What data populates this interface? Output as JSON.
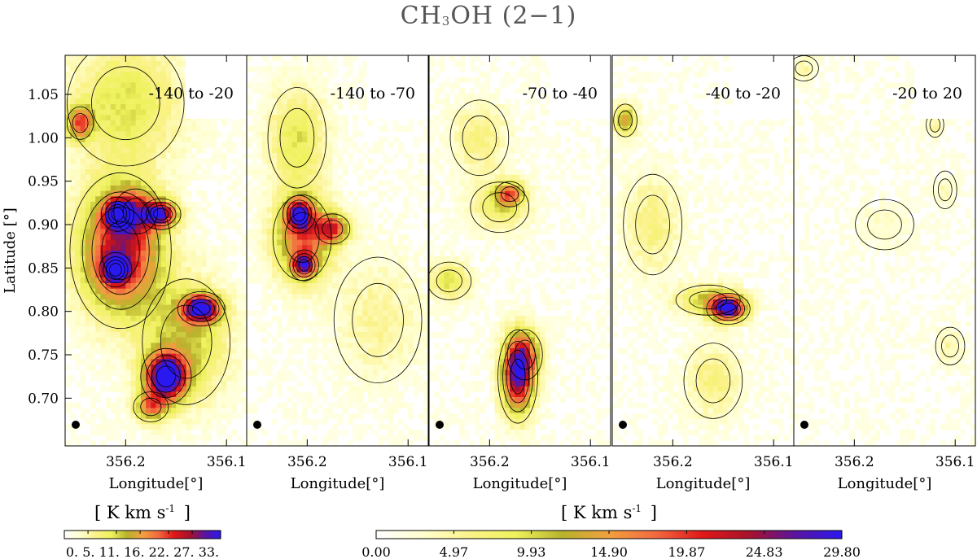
{
  "title": {
    "main": "CH",
    "sub": "3",
    "rest": "OH (2−1)"
  },
  "colors": {
    "colormap": [
      "#ffffff",
      "#ffffd0",
      "#fbf28a",
      "#eef25c",
      "#b8b22c",
      "#f2a040",
      "#f26a40",
      "#e01818",
      "#a8122a",
      "#5a14a0",
      "#2a18f0"
    ],
    "contour": "#000000"
  },
  "chart_data": {
    "type": "heatmap",
    "xlabel": "Longitude[°]",
    "ylabel": "Latitude [°]",
    "xlim": [
      356.26,
      356.08
    ],
    "ylim": [
      0.645,
      1.095
    ],
    "xticks": [
      356.2,
      356.1
    ],
    "xtick_labels": [
      "356.2",
      "356.1"
    ],
    "yticks": [
      0.7,
      0.75,
      0.8,
      0.85,
      0.9,
      0.95,
      1.0,
      1.05
    ],
    "ytick_labels": [
      "0.70",
      "0.75",
      "0.80",
      "0.85",
      "0.90",
      "0.95",
      "1.00",
      "1.05"
    ],
    "beam": "filled-circle-bottom-left",
    "panels": [
      {
        "label": "-140 to -20",
        "blobs": [
          {
            "lon": 356.205,
            "lat": 0.87,
            "val": 16,
            "sx": 0.028,
            "sy": 0.05
          },
          {
            "lon": 356.208,
            "lat": 0.912,
            "val": 14,
            "sx": 0.009,
            "sy": 0.011
          },
          {
            "lon": 356.21,
            "lat": 0.848,
            "val": 14,
            "sx": 0.009,
            "sy": 0.011
          },
          {
            "lon": 356.19,
            "lat": 0.915,
            "val": 8,
            "sx": 0.015,
            "sy": 0.018
          },
          {
            "lon": 356.165,
            "lat": 0.912,
            "val": 16,
            "sx": 0.011,
            "sy": 0.01
          },
          {
            "lon": 356.125,
            "lat": 0.803,
            "val": 20,
            "sx": 0.013,
            "sy": 0.011
          },
          {
            "lon": 356.16,
            "lat": 0.725,
            "val": 22,
            "sx": 0.014,
            "sy": 0.018
          },
          {
            "lon": 356.175,
            "lat": 0.69,
            "val": 10,
            "sx": 0.012,
            "sy": 0.012
          },
          {
            "lon": 356.245,
            "lat": 1.017,
            "val": 11,
            "sx": 0.009,
            "sy": 0.013
          },
          {
            "lon": 356.14,
            "lat": 0.765,
            "val": 7,
            "sx": 0.03,
            "sy": 0.05
          },
          {
            "lon": 356.2,
            "lat": 1.04,
            "val": 6,
            "sx": 0.04,
            "sy": 0.05
          }
        ]
      },
      {
        "label": "-140 to -70",
        "blobs": [
          {
            "lon": 356.205,
            "lat": 0.885,
            "val": 12,
            "sx": 0.02,
            "sy": 0.034
          },
          {
            "lon": 356.208,
            "lat": 0.912,
            "val": 14,
            "sx": 0.009,
            "sy": 0.012
          },
          {
            "lon": 356.203,
            "lat": 0.853,
            "val": 13,
            "sx": 0.008,
            "sy": 0.01
          },
          {
            "lon": 356.175,
            "lat": 0.895,
            "val": 12,
            "sx": 0.012,
            "sy": 0.012
          },
          {
            "lon": 356.21,
            "lat": 1.0,
            "val": 6,
            "sx": 0.02,
            "sy": 0.04
          },
          {
            "lon": 356.13,
            "lat": 0.79,
            "val": 3,
            "sx": 0.03,
            "sy": 0.05
          }
        ]
      },
      {
        "label": "-70 to -40",
        "blobs": [
          {
            "lon": 356.172,
            "lat": 0.725,
            "val": 18,
            "sx": 0.011,
            "sy": 0.03
          },
          {
            "lon": 356.165,
            "lat": 0.75,
            "val": 8,
            "sx": 0.012,
            "sy": 0.02
          },
          {
            "lon": 356.18,
            "lat": 0.935,
            "val": 10,
            "sx": 0.01,
            "sy": 0.01
          },
          {
            "lon": 356.19,
            "lat": 0.92,
            "val": 5,
            "sx": 0.02,
            "sy": 0.02
          },
          {
            "lon": 356.24,
            "lat": 0.835,
            "val": 6,
            "sx": 0.015,
            "sy": 0.015
          },
          {
            "lon": 356.21,
            "lat": 1.0,
            "val": 4,
            "sx": 0.02,
            "sy": 0.03
          }
        ]
      },
      {
        "label": "-40 to -20",
        "blobs": [
          {
            "lon": 356.145,
            "lat": 0.803,
            "val": 20,
            "sx": 0.012,
            "sy": 0.01
          },
          {
            "lon": 356.165,
            "lat": 0.813,
            "val": 7,
            "sx": 0.022,
            "sy": 0.012
          },
          {
            "lon": 356.247,
            "lat": 1.02,
            "val": 9,
            "sx": 0.008,
            "sy": 0.013
          },
          {
            "lon": 356.22,
            "lat": 0.9,
            "val": 4,
            "sx": 0.02,
            "sy": 0.04
          },
          {
            "lon": 356.16,
            "lat": 0.72,
            "val": 4,
            "sx": 0.02,
            "sy": 0.03
          }
        ]
      },
      {
        "label": "-20 to 20",
        "blobs": [
          {
            "lon": 356.25,
            "lat": 1.08,
            "val": 2.5,
            "sx": 0.01,
            "sy": 0.01
          },
          {
            "lon": 356.11,
            "lat": 0.94,
            "val": 2,
            "sx": 0.008,
            "sy": 0.015
          },
          {
            "lon": 356.105,
            "lat": 0.76,
            "val": 2.5,
            "sx": 0.01,
            "sy": 0.015
          },
          {
            "lon": 356.12,
            "lat": 1.015,
            "val": 3,
            "sx": 0.006,
            "sy": 0.01
          },
          {
            "lon": 356.17,
            "lat": 0.9,
            "val": 1.5,
            "sx": 0.02,
            "sy": 0.02
          }
        ]
      }
    ],
    "colorbars": [
      {
        "title": "[ K km s",
        "title_sup": "-1",
        "title_end": "]",
        "range": [
          0,
          33
        ],
        "ticks": [
          0,
          5,
          11,
          16,
          22,
          27,
          33
        ],
        "tick_text": "0.  5. 11. 16. 22. 27. 33."
      },
      {
        "title": "[ K km s",
        "title_sup": "-1",
        "title_end": "]",
        "range": [
          0,
          29.8
        ],
        "ticks": [
          0.0,
          4.97,
          9.93,
          14.9,
          19.87,
          24.83,
          29.8
        ],
        "tick_labels": [
          "0.00",
          "4.97",
          "9.93",
          "14.90",
          "19.87",
          "24.83",
          "29.80"
        ]
      }
    ]
  }
}
